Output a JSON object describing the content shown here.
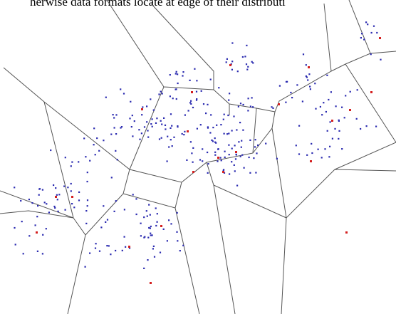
{
  "caption": "herwise data formats locate at edge of their distributi"
}
